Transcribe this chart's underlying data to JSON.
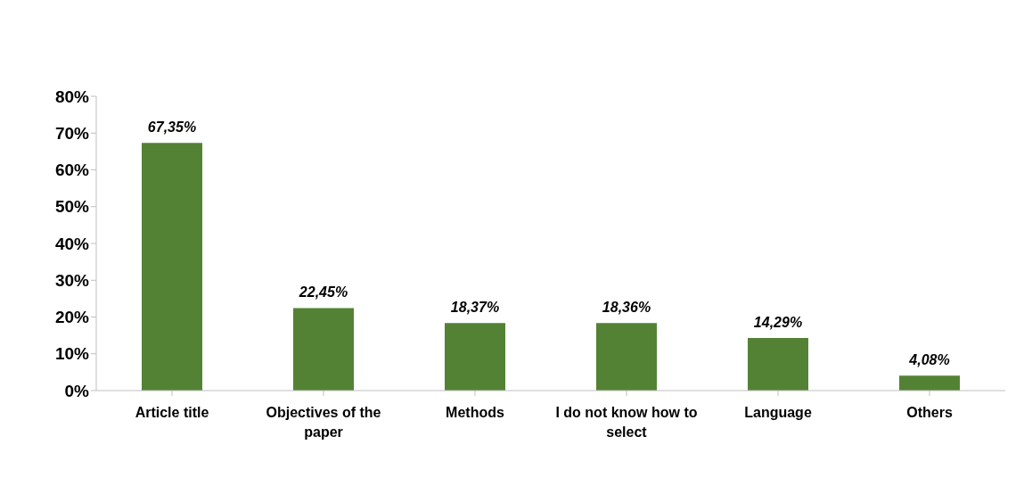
{
  "chart_data": {
    "type": "bar",
    "categories": [
      "Article title",
      "Objectives of the paper",
      "Methods",
      "I do not know how to select",
      "Language",
      "Others"
    ],
    "values": [
      67.35,
      22.45,
      18.37,
      18.36,
      14.29,
      4.08
    ],
    "value_labels": [
      "67,35%",
      "22,45%",
      "18,37%",
      "18,36%",
      "14,29%",
      "4,08%"
    ],
    "color": "#548235",
    "ylim": [
      0,
      80
    ],
    "yticks": [
      {
        "value": 0,
        "label": "0%"
      },
      {
        "value": 10,
        "label": "10%"
      },
      {
        "value": 20,
        "label": "20%"
      },
      {
        "value": 30,
        "label": "30%"
      },
      {
        "value": 40,
        "label": "40%"
      },
      {
        "value": 50,
        "label": "50%"
      },
      {
        "value": 60,
        "label": "60%"
      },
      {
        "value": 70,
        "label": "70%"
      },
      {
        "value": 80,
        "label": "80%"
      }
    ],
    "grid": false,
    "legend": false
  }
}
